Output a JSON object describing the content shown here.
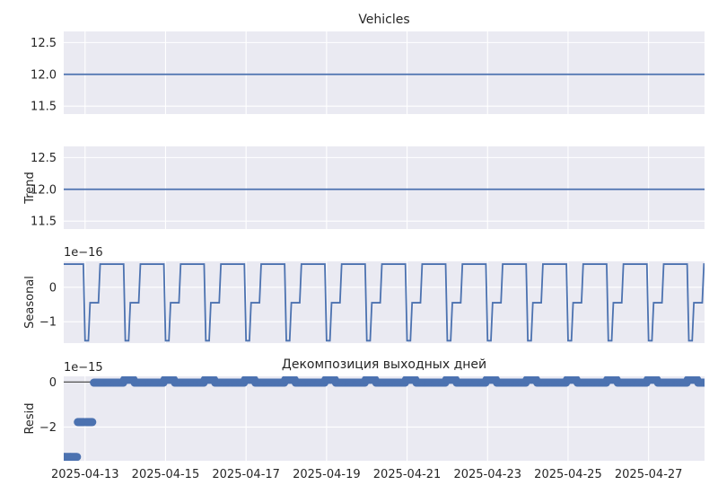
{
  "chart_data": {
    "type": "line",
    "suptitle": "",
    "x_dates": [
      "2025-04-13",
      "2025-04-15",
      "2025-04-17",
      "2025-04-19",
      "2025-04-21",
      "2025-04-23",
      "2025-04-25",
      "2025-04-27"
    ],
    "x_range_days": [
      "2025-04-12",
      "2025-04-28"
    ],
    "panels": [
      {
        "id": "observed",
        "title": "Vehicles",
        "ylabel": "",
        "offset_text": "",
        "ylim": [
          11.375,
          12.675
        ],
        "yticks": [
          12.5,
          12.0,
          11.5
        ],
        "ytick_labels": [
          "12.5",
          "12.0",
          "11.5"
        ],
        "series": [
          {
            "name": "Vehicles",
            "kind": "line",
            "value": 12.0
          }
        ]
      },
      {
        "id": "trend",
        "title": "",
        "ylabel": "Trend",
        "offset_text": "",
        "ylim": [
          11.375,
          12.675
        ],
        "yticks": [
          12.5,
          12.0,
          11.5
        ],
        "ytick_labels": [
          "12.5",
          "12.0",
          "11.5"
        ],
        "series": [
          {
            "name": "Trend",
            "kind": "line",
            "value": 12.0
          }
        ]
      },
      {
        "id": "seasonal",
        "title": "",
        "ylabel": "Seasonal",
        "offset_text": "1e−16",
        "ylim": [
          -1.62,
          0.75
        ],
        "yticks": [
          0,
          -1
        ],
        "ytick_labels": [
          "0",
          "−1"
        ],
        "series": [
          {
            "name": "Seasonal",
            "kind": "periodic",
            "period_days": 1,
            "pattern": [
              {
                "phase": 0.0,
                "value": -1.55
              },
              {
                "phase": 0.083,
                "value": -1.55
              },
              {
                "phase": 0.125,
                "value": -0.45
              },
              {
                "phase": 0.333,
                "value": -0.45
              },
              {
                "phase": 0.375,
                "value": 0.67
              },
              {
                "phase": 0.958,
                "value": 0.67
              },
              {
                "phase": 1.0,
                "value": -1.55
              }
            ]
          }
        ]
      },
      {
        "id": "resid",
        "title": "Декомпозиция выходных дней",
        "ylabel": "Resid",
        "offset_text": "1e−15",
        "ylim": [
          -3.5,
          0.25
        ],
        "yticks": [
          0,
          -2
        ],
        "ytick_labels": [
          "0",
          "−2"
        ],
        "baseline": 0,
        "series": [
          {
            "name": "Resid",
            "kind": "markers",
            "initial_points": [
              {
                "day_offset": 0.0,
                "value": -3.33
              },
              {
                "day_offset": 0.17,
                "value": -3.33
              },
              {
                "day_offset": 0.35,
                "value": -1.78
              },
              {
                "day_offset": 0.55,
                "value": -1.78
              },
              {
                "day_offset": 0.75,
                "value": -0.03
              }
            ],
            "periodic_pattern": [
              {
                "phase": 0.0,
                "value": 0.1
              },
              {
                "phase": 0.25,
                "value": 0.0
              },
              {
                "phase": 0.5,
                "value": -0.03
              },
              {
                "phase": 0.9,
                "value": -0.03
              }
            ]
          }
        ]
      }
    ]
  }
}
